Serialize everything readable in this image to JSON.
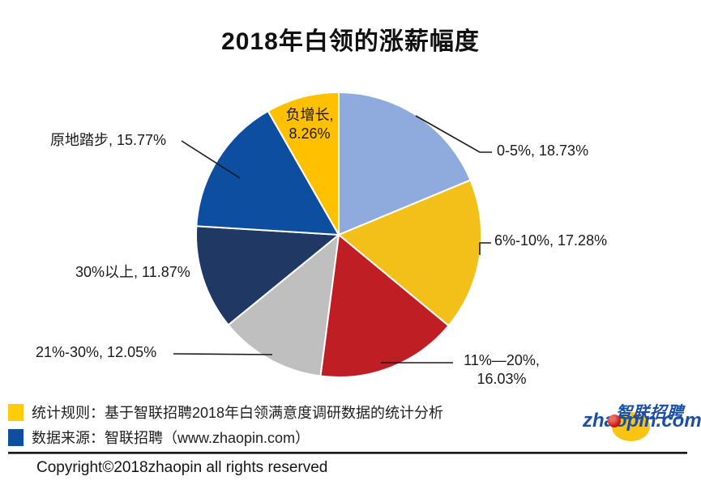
{
  "title": "2018年白领的涨薪幅度",
  "chart_data": {
    "type": "pie",
    "title": "2018年白领的涨薪幅度",
    "unit": "%",
    "start_angle_deg": -90,
    "direction": "clockwise",
    "segments": [
      {
        "label": "0-5%",
        "value": 18.73,
        "display": "0-5%, 18.73%",
        "color": "#8FAADC"
      },
      {
        "label": "6%-10%",
        "value": 17.28,
        "display": "6%-10%, 17.28%",
        "color": "#F2C019"
      },
      {
        "label": "11%—20%",
        "value": 16.03,
        "display": "11%—20%, 16.03%",
        "color": "#BE1E24"
      },
      {
        "label": "21%-30%",
        "value": 12.05,
        "display": "21%-30%, 12.05%",
        "color": "#BFBFBF"
      },
      {
        "label": "30%以上",
        "value": 11.87,
        "display": "30%以上, 11.87%",
        "color": "#1F3864"
      },
      {
        "label": "原地踏步",
        "value": 15.77,
        "display": "原地踏步, 15.77%",
        "color": "#0D4EA0"
      },
      {
        "label": "负增长",
        "value": 8.26,
        "display": "负增长, 8.26%",
        "color": "#FFC000"
      }
    ]
  },
  "legend": {
    "items": [
      {
        "swatch_color": "#FFCC05",
        "text": "统计规则：基于智联招聘2018年白领满意度调研数据的统计分析"
      },
      {
        "swatch_color": "#0D4EA0",
        "text": "数据来源：智联招聘（www.zhaopin.com）"
      }
    ]
  },
  "footer": {
    "copyright": "Copyright©2018zhaopin all rights reserved"
  },
  "logo": {
    "cn": "智联招聘",
    "en": "zhaopin.com"
  }
}
